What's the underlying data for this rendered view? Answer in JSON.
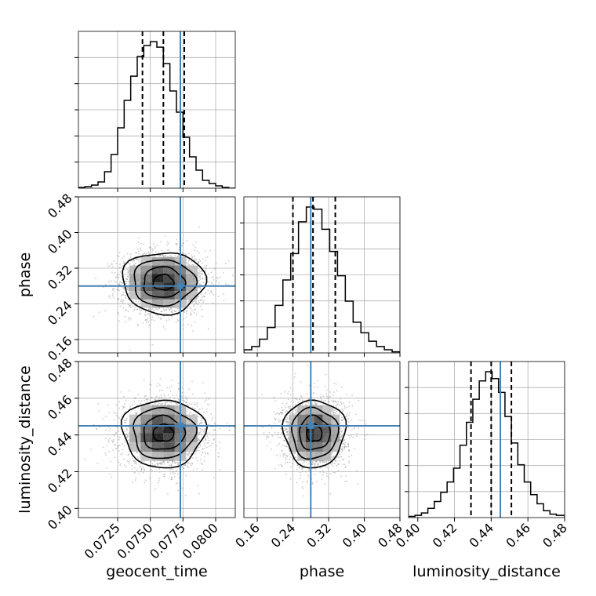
{
  "chart_data": {
    "type": "corner",
    "grid": true,
    "colors": {
      "truth": "#4682b4",
      "line": "#000000",
      "grid": "#b0b0b0",
      "scatter": "#8c8c8c"
    },
    "parameters": [
      {
        "label": "geocent_time",
        "range": [
          0.0695,
          0.0815
        ],
        "ticks": [
          0.0725,
          0.075,
          0.0775,
          0.08
        ],
        "tick_labels": [
          "0.0725",
          "0.0750",
          "0.0775",
          "0.0800"
        ],
        "truth": 0.0773,
        "mean": 0.076,
        "sd": 0.00158,
        "quantiles": [
          0.0744,
          0.076,
          0.0776
        ],
        "histogram": {
          "edges": [
            0.0695,
            0.07,
            0.0705,
            0.071,
            0.0715,
            0.072,
            0.0725,
            0.073,
            0.0735,
            0.074,
            0.0745,
            0.075,
            0.0755,
            0.076,
            0.0765,
            0.077,
            0.0775,
            0.078,
            0.0785,
            0.079,
            0.0795,
            0.08,
            0.0805,
            0.081,
            0.0815
          ],
          "counts": [
            1,
            2,
            4,
            8,
            21,
            43,
            77,
            112,
            143,
            168,
            182,
            187,
            180,
            159,
            124,
            97,
            65,
            40,
            23,
            10,
            6,
            3,
            1,
            0
          ]
        }
      },
      {
        "label": "phase",
        "range": [
          0.13,
          0.48
        ],
        "ticks": [
          0.16,
          0.24,
          0.32,
          0.4,
          0.48
        ],
        "tick_labels": [
          "0.16",
          "0.24",
          "0.32",
          "0.40",
          "0.48"
        ],
        "truth": 0.28,
        "mean": 0.288,
        "sd": 0.0345,
        "quantiles": [
          0.24,
          0.285,
          0.335
        ],
        "histogram": {
          "edges": [
            0.13,
            0.1475,
            0.165,
            0.1825,
            0.2,
            0.2175,
            0.235,
            0.2525,
            0.27,
            0.2875,
            0.305,
            0.3225,
            0.34,
            0.3575,
            0.375,
            0.3925,
            0.41,
            0.4275,
            0.445,
            0.4625,
            0.48
          ],
          "counts": [
            3,
            6,
            13,
            24,
            45,
            69,
            94,
            124,
            138,
            136,
            117,
            96,
            73,
            49,
            29,
            19,
            11,
            6,
            3,
            1
          ]
        }
      },
      {
        "label": "luminosity_distance",
        "range": [
          0.395,
          0.48
        ],
        "ticks": [
          0.4,
          0.42,
          0.44,
          0.46,
          0.48
        ],
        "tick_labels": [
          "0.40",
          "0.42",
          "0.44",
          "0.46",
          "0.48"
        ],
        "truth": 0.445,
        "mean": 0.441,
        "sd": 0.0092,
        "quantiles": [
          0.429,
          0.44,
          0.451
        ],
        "histogram": {
          "edges": [
            0.395,
            0.3985,
            0.402,
            0.4055,
            0.409,
            0.4125,
            0.416,
            0.4195,
            0.423,
            0.4265,
            0.43,
            0.4335,
            0.437,
            0.4405,
            0.444,
            0.4475,
            0.451,
            0.4545,
            0.458,
            0.4615,
            0.465,
            0.4685,
            0.472,
            0.4755,
            0.48
          ],
          "counts": [
            1,
            2,
            4,
            8,
            14,
            22,
            31,
            43,
            63,
            83,
            103,
            119,
            127,
            121,
            109,
            88,
            65,
            46,
            31,
            20,
            12,
            6,
            3,
            2
          ]
        }
      }
    ],
    "pairs": [
      {
        "x": "geocent_time",
        "y": "phase"
      },
      {
        "x": "geocent_time",
        "y": "luminosity_distance"
      },
      {
        "x": "phase",
        "y": "luminosity_distance"
      }
    ]
  }
}
